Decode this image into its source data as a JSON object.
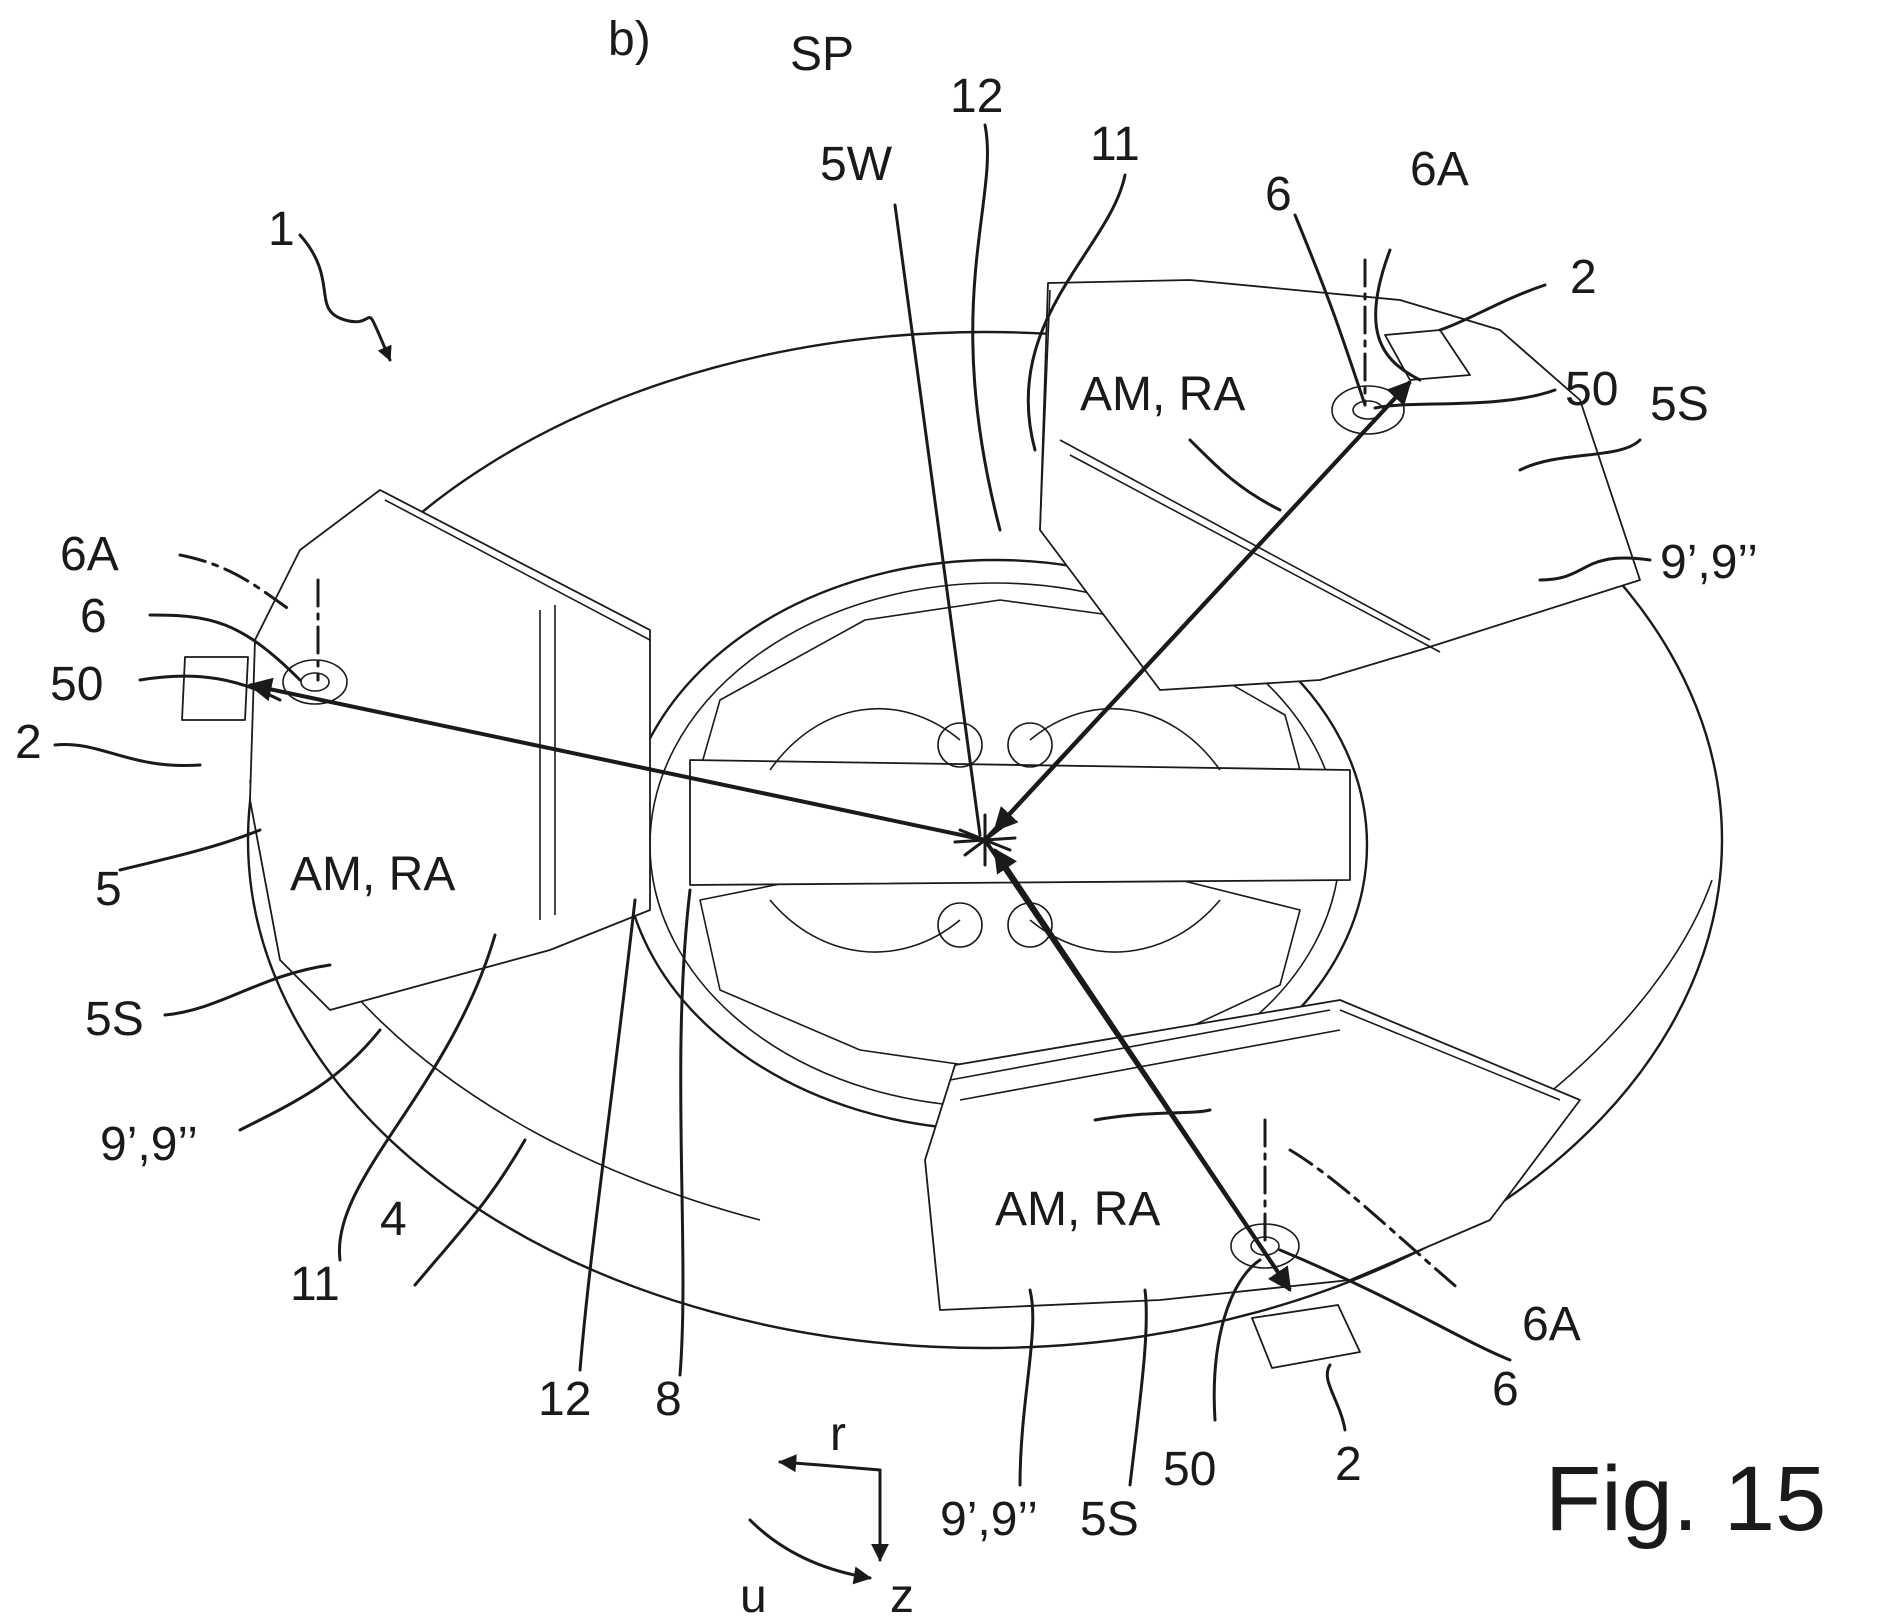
{
  "figure": {
    "caption": "Fig. 15",
    "subfigure_label": "b)",
    "center_label": "SP",
    "reference_numerals": [
      {
        "id": "ref-1",
        "text": "1"
      },
      {
        "id": "ref-5w",
        "text": "5W"
      },
      {
        "id": "ref-12-top",
        "text": "12"
      },
      {
        "id": "ref-11-top",
        "text": "11"
      },
      {
        "id": "ref-6-top",
        "text": "6"
      },
      {
        "id": "ref-6a-top",
        "text": "6A"
      },
      {
        "id": "ref-2-top",
        "text": "2"
      },
      {
        "id": "ref-50-top",
        "text": "50"
      },
      {
        "id": "ref-5s-top",
        "text": "5S"
      },
      {
        "id": "ref-am-ra-top",
        "text": "AM, RA"
      },
      {
        "id": "ref-9-top",
        "text": "9’,9’’"
      },
      {
        "id": "ref-6a-left",
        "text": "6A"
      },
      {
        "id": "ref-6-left",
        "text": "6"
      },
      {
        "id": "ref-50-left",
        "text": "50"
      },
      {
        "id": "ref-2-left",
        "text": "2"
      },
      {
        "id": "ref-5",
        "text": "5"
      },
      {
        "id": "ref-am-ra-left",
        "text": "AM, RA"
      },
      {
        "id": "ref-5s-left",
        "text": "5S"
      },
      {
        "id": "ref-9-left",
        "text": "9’,9’’"
      },
      {
        "id": "ref-11-bottom",
        "text": "11"
      },
      {
        "id": "ref-4",
        "text": "4"
      },
      {
        "id": "ref-12-bottom",
        "text": "12"
      },
      {
        "id": "ref-8",
        "text": "8"
      },
      {
        "id": "ref-am-ra-bottom",
        "text": "AM, RA"
      },
      {
        "id": "ref-6a-bottom",
        "text": "6A"
      },
      {
        "id": "ref-6-bottom",
        "text": "6"
      },
      {
        "id": "ref-50-bottom",
        "text": "50"
      },
      {
        "id": "ref-2-bottom",
        "text": "2"
      },
      {
        "id": "ref-9-bottom",
        "text": "9’,9’’"
      },
      {
        "id": "ref-5s-bottom",
        "text": "5S"
      }
    ],
    "axes": {
      "r": "r",
      "u": "u",
      "z": "z"
    }
  }
}
